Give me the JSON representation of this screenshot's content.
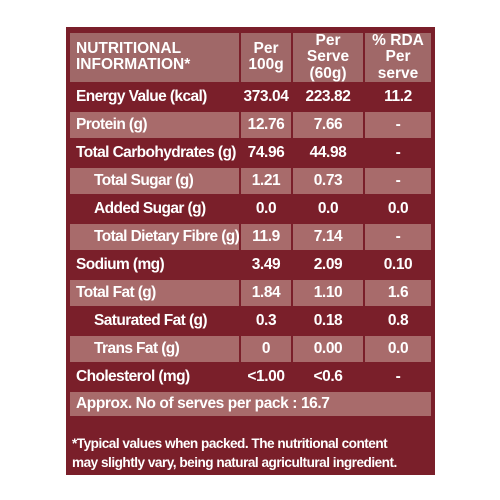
{
  "header": {
    "col1": "NUTRITIONAL INFORMATION*",
    "col2": "Per 100g",
    "col3": "Per Serve (60g)",
    "col4": "% RDA Per serve"
  },
  "rows": [
    {
      "label": "Energy Value (kcal)",
      "per100": "373.04",
      "perServe": "223.82",
      "rda": "11.2"
    },
    {
      "label": "Protein (g)",
      "per100": "12.76",
      "perServe": "7.66",
      "rda": "-"
    },
    {
      "label": "Total Carbohydrates (g)",
      "per100": "74.96",
      "perServe": "44.98",
      "rda": "-"
    },
    {
      "label": "Total Sugar (g)",
      "per100": "1.21",
      "perServe": "0.73",
      "rda": "-"
    },
    {
      "label": "Added Sugar (g)",
      "per100": "0.0",
      "perServe": "0.0",
      "rda": "0.0"
    },
    {
      "label": "Total Dietary Fibre (g)",
      "per100": "11.9",
      "perServe": "7.14",
      "rda": "-"
    },
    {
      "label": "Sodium (mg)",
      "per100": "3.49",
      "perServe": "2.09",
      "rda": "0.10"
    },
    {
      "label": "Total Fat (g)",
      "per100": "1.84",
      "perServe": "1.10",
      "rda": "1.6"
    },
    {
      "label": "Saturated Fat (g)",
      "per100": "0.3",
      "perServe": "0.18",
      "rda": "0.8"
    },
    {
      "label": "Trans Fat (g)",
      "per100": "0",
      "perServe": "0.00",
      "rda": "0.0"
    },
    {
      "label": "Cholesterol (mg)",
      "per100": "<1.00",
      "perServe": "<0.6",
      "rda": "-"
    }
  ],
  "approx": "Approx.  No of serves per pack : 16.7",
  "note_line1": "*Typical values when packed. The nutritional content",
  "note_line2": "may slightly vary,  being natural agricultural ingredient."
}
